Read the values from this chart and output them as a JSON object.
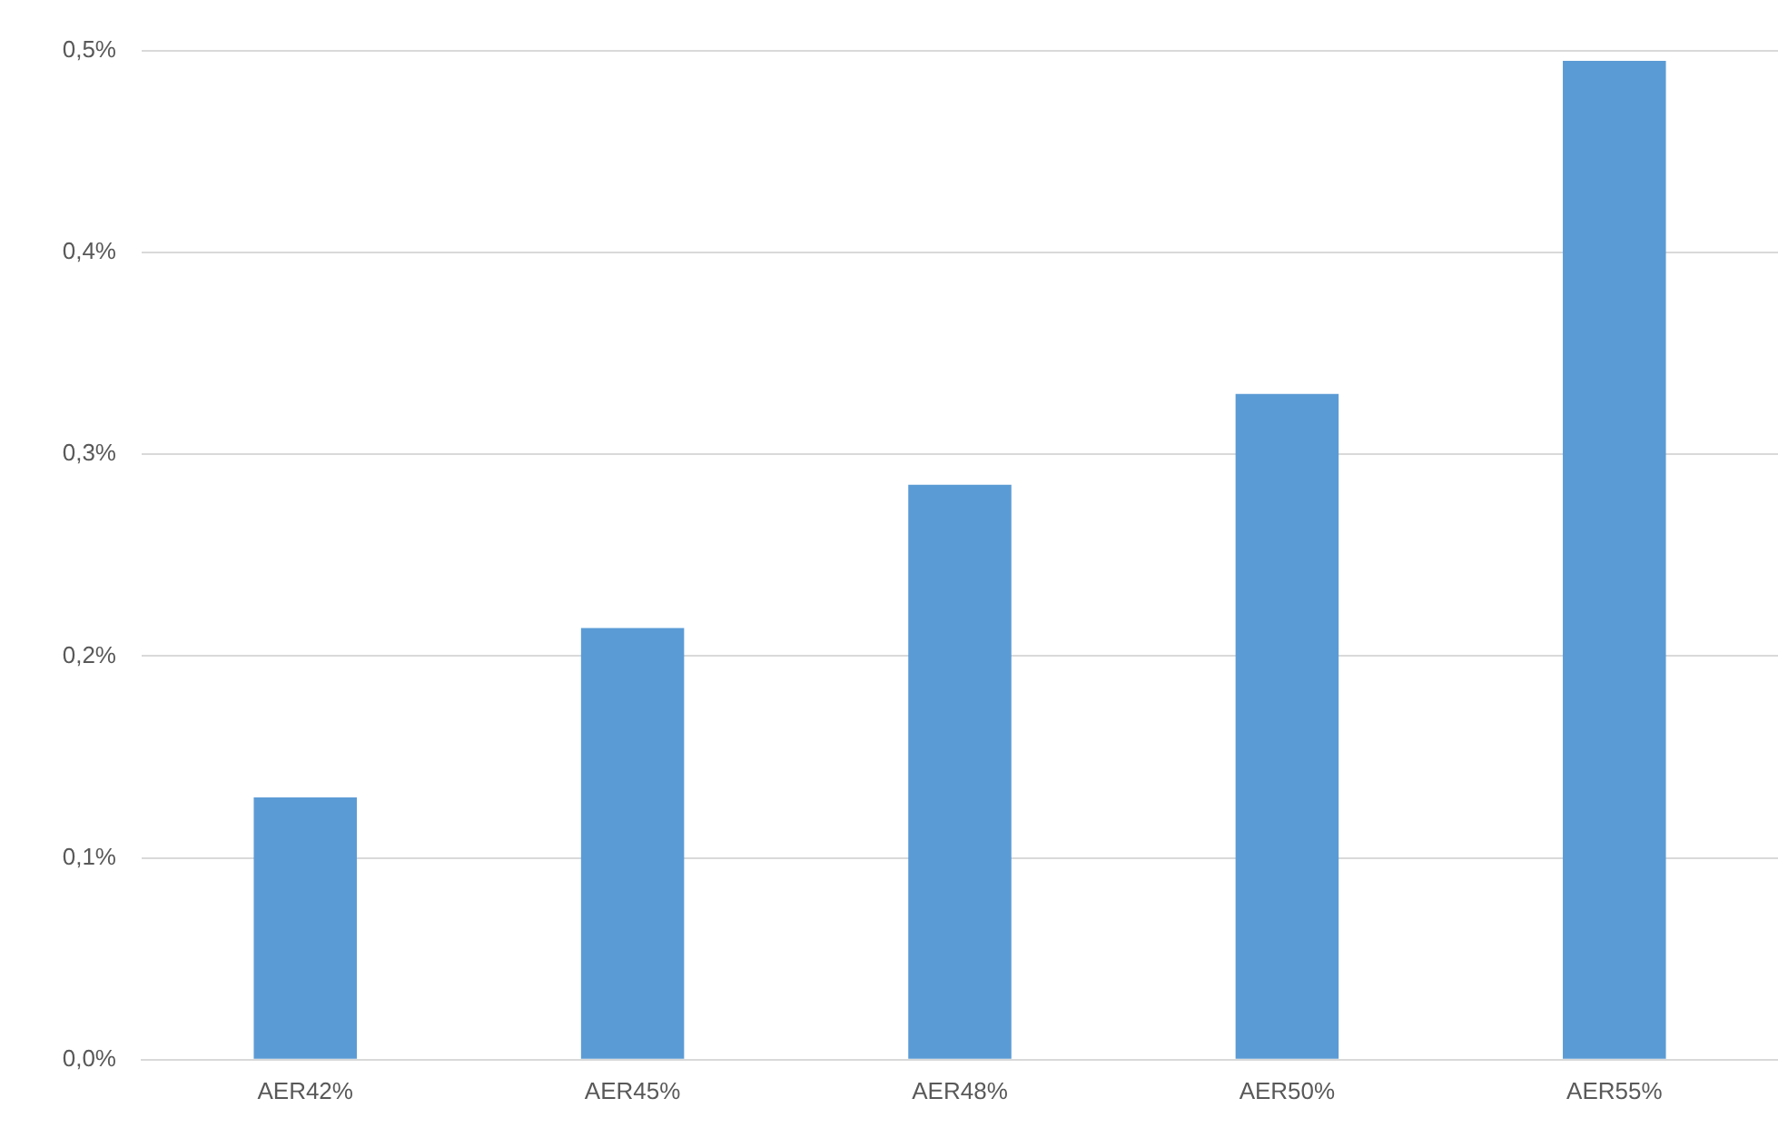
{
  "chart_data": {
    "type": "bar",
    "categories": [
      "AER42%",
      "AER45%",
      "AER48%",
      "AER50%",
      "AER55%"
    ],
    "values": [
      0.13,
      0.214,
      0.285,
      0.33,
      0.495
    ],
    "color": "#5b9bd5",
    "ylim": [
      0,
      0.5
    ],
    "yticks": [
      {
        "value": 0,
        "label": "0,0%"
      },
      {
        "value": 0.1,
        "label": "0,1%"
      },
      {
        "value": 0.2,
        "label": "0,2%"
      },
      {
        "value": 0.3,
        "label": "0,3%"
      },
      {
        "value": 0.4,
        "label": "0,4%"
      },
      {
        "value": 0.5,
        "label": "0,5%"
      }
    ],
    "grid": "y",
    "legend": false
  }
}
